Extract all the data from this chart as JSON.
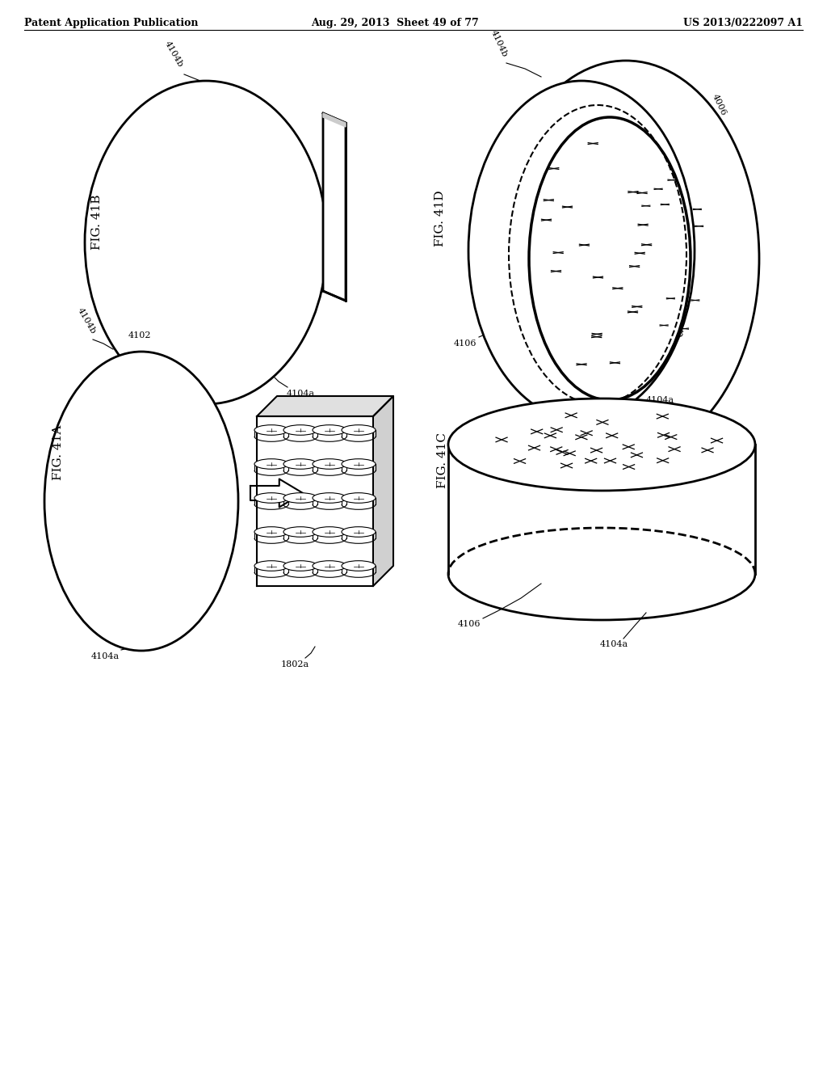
{
  "header_left": "Patent Application Publication",
  "header_mid": "Aug. 29, 2013  Sheet 49 of 77",
  "header_right": "US 2013/0222097 A1",
  "background": "#ffffff"
}
